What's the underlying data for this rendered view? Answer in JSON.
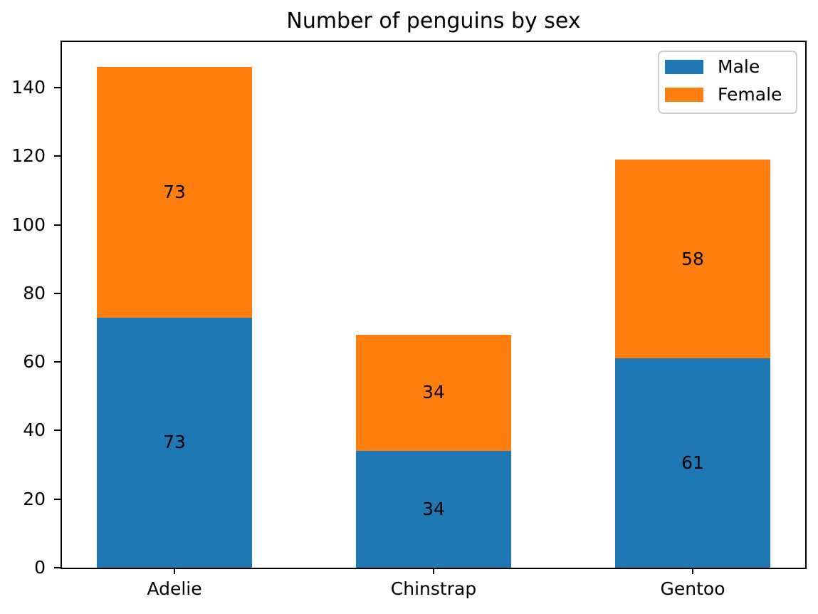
{
  "figure": {
    "background": "#ffffff",
    "text_color": "#000000",
    "spine_color": "#000000"
  },
  "chart_data": {
    "type": "bar",
    "stacked": true,
    "title": "Number of penguins by sex",
    "xlabel": "",
    "ylabel": "",
    "categories": [
      "Adelie",
      "Chinstrap",
      "Gentoo"
    ],
    "series": [
      {
        "name": "Male",
        "color": "#1f77b4",
        "values": [
          73,
          34,
          61
        ]
      },
      {
        "name": "Female",
        "color": "#ff7f0e",
        "values": [
          73,
          34,
          58
        ]
      }
    ],
    "bar_value_labels": {
      "Male": [
        73,
        34,
        61
      ],
      "Female": [
        73,
        34,
        58
      ]
    },
    "yticks": [
      0,
      20,
      40,
      60,
      80,
      100,
      120,
      140
    ],
    "ylim": [
      0,
      153.3
    ],
    "grid": false,
    "legend": {
      "position": "upper right",
      "entries": [
        "Male",
        "Female"
      ],
      "edge_color": "#cccccc"
    }
  }
}
